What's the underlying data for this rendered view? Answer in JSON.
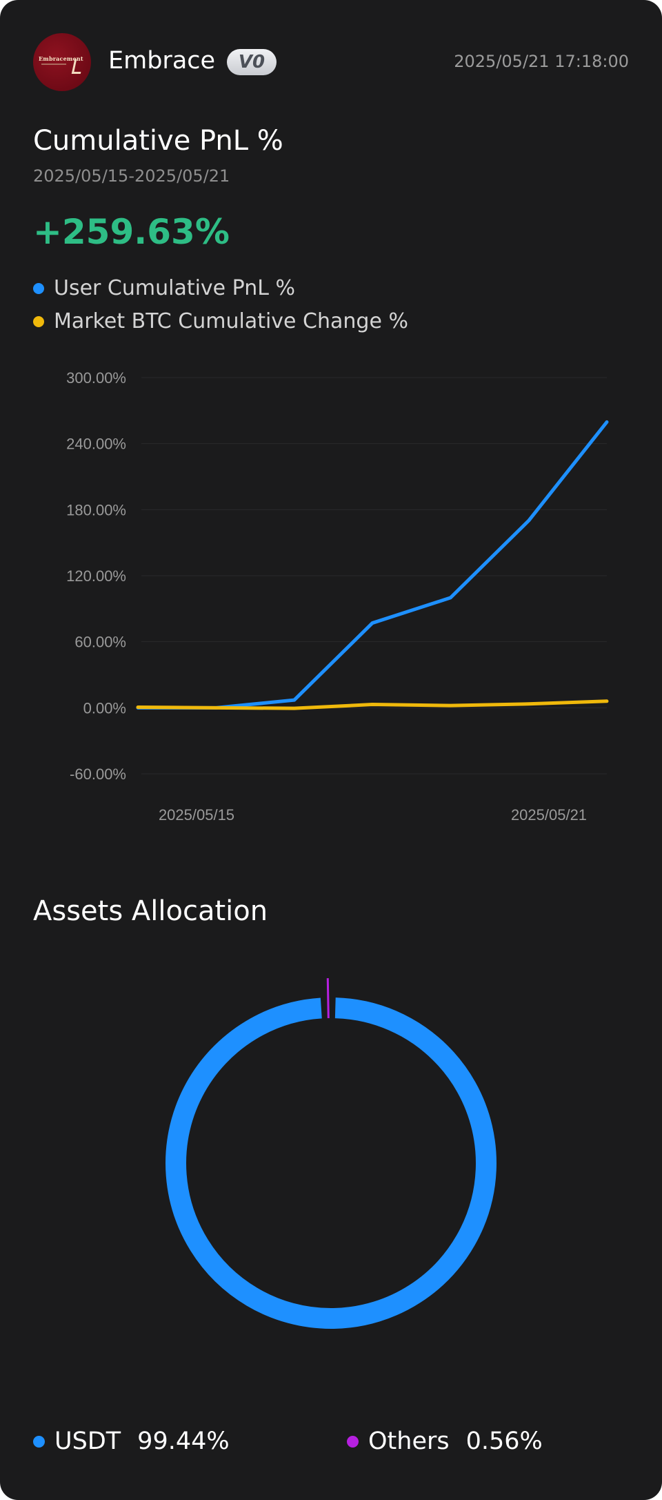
{
  "header": {
    "avatar_logo_text": "Embracement",
    "username": "Embrace",
    "level_badge": "V0",
    "timestamp": "2025/05/21 17:18:00"
  },
  "pnl": {
    "title": "Cumulative PnL %",
    "date_range": "2025/05/15-2025/05/21",
    "value": "+259.63%",
    "legend": [
      {
        "label": "User Cumulative PnL %",
        "color": "#1e90ff"
      },
      {
        "label": "Market BTC Cumulative Change %",
        "color": "#f0b90b"
      }
    ]
  },
  "chart_data": {
    "type": "line",
    "title": "Cumulative PnL %",
    "x": [
      "2025/05/15",
      "2025/05/16",
      "2025/05/17",
      "2025/05/18",
      "2025/05/19",
      "2025/05/20",
      "2025/05/21"
    ],
    "x_tick_labels": [
      "2025/05/15",
      "2025/05/21"
    ],
    "y_tick_labels": [
      "300.00%",
      "240.00%",
      "180.00%",
      "120.00%",
      "60.00%",
      "0.00%",
      "-60.00%"
    ],
    "ylim": [
      -60,
      300
    ],
    "y_ticks": [
      300,
      240,
      180,
      120,
      60,
      0,
      -60
    ],
    "grid": true,
    "legend_position": "top-left",
    "series": [
      {
        "name": "User Cumulative PnL %",
        "color": "#1e90ff",
        "values": [
          0,
          0,
          7,
          77,
          100,
          170,
          259.63
        ]
      },
      {
        "name": "Market BTC Cumulative Change %",
        "color": "#f0b90b",
        "values": [
          0.5,
          0,
          -0.5,
          3,
          2,
          3.5,
          6
        ]
      }
    ]
  },
  "assets": {
    "title": "Assets Allocation",
    "items": [
      {
        "name": "USDT",
        "percent": "99.44%",
        "value": 99.44,
        "color": "#1e90ff"
      },
      {
        "name": "Others",
        "percent": "0.56%",
        "value": 0.56,
        "color": "#b620e0"
      }
    ]
  }
}
